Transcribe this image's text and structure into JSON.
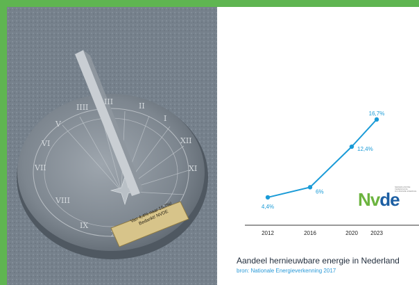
{
  "photo": {
    "plaque_line1": "Van 4,4% naar 16,7%!",
    "plaque_line2": "Bedankt! NVDE"
  },
  "logo": {
    "text_main": "Nv",
    "text_accent": "de",
    "tagline": "NEDERLANDSE VERENIGING DUURZAME ENERGIE"
  },
  "caption": {
    "title": "Aandeel hernieuwbare energie in Nederland",
    "source": "bron: Nationale Energieverkenning 2017"
  },
  "colors": {
    "frame": "#5fb551",
    "line": "#1a9bd7",
    "label": "#1a9bd7"
  },
  "chart_data": {
    "type": "line",
    "x": [
      2012,
      2016,
      2020,
      2023
    ],
    "y": [
      4.4,
      6.0,
      12.4,
      16.7
    ],
    "point_labels": [
      "4,4%",
      "6%",
      "12,4%",
      "16,7%"
    ],
    "x_ticks": [
      "2012",
      "2016",
      "2020",
      "2023"
    ],
    "title": "Aandeel hernieuwbare energie in Nederland",
    "xlabel": "",
    "ylabel": "",
    "xlim": [
      2010,
      2025
    ],
    "ylim": [
      0,
      18
    ],
    "grid": false,
    "legend": "none"
  }
}
